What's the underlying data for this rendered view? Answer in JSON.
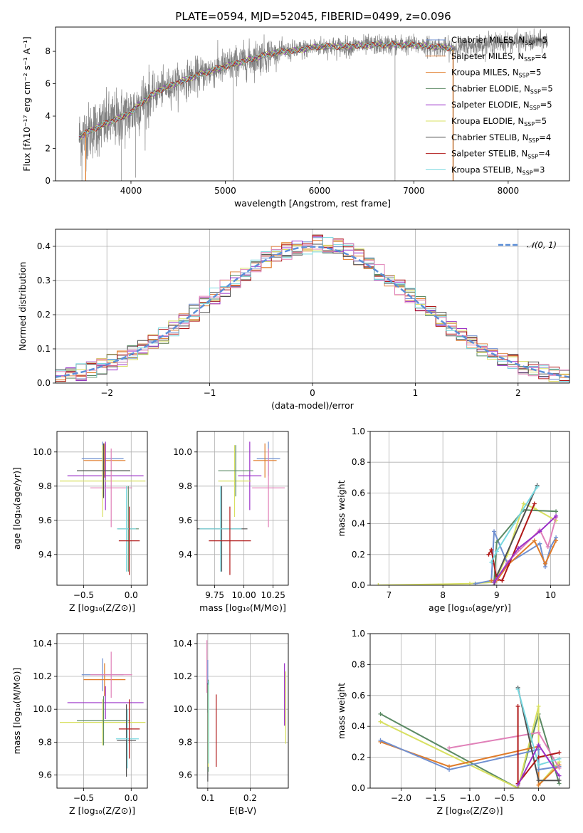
{
  "figure_title": "PLATE=0594, MJD=52045, FIBERID=0499, z=0.096",
  "chart_data": [
    {
      "id": "spectrum",
      "type": "line",
      "xlabel": "wavelength [Angstrom, rest frame]",
      "ylabel": "Flux [fλ10⁻¹⁷ erg cm⁻² s⁻¹ A⁻¹]",
      "xlim": [
        3200,
        8650
      ],
      "ylim": [
        0,
        9.5
      ],
      "xticks": [
        4000,
        5000,
        6000,
        7000,
        8000
      ],
      "yticks": [
        0,
        2,
        4,
        6,
        8
      ],
      "grid": false,
      "legend_position": "upper-right",
      "data_series": {
        "name": "",
        "color": "#808080",
        "x_range": [
          3450,
          8420
        ]
      },
      "model_curve": [
        [
          3450,
          2.7
        ],
        [
          3600,
          3.2
        ],
        [
          3800,
          3.7
        ],
        [
          4000,
          4.2
        ],
        [
          4100,
          4.8
        ],
        [
          4300,
          5.6
        ],
        [
          4600,
          6.3
        ],
        [
          4900,
          6.9
        ],
        [
          5200,
          7.4
        ],
        [
          5500,
          7.9
        ],
        [
          5800,
          8.1
        ],
        [
          6000,
          8.3
        ],
        [
          6300,
          8.3
        ],
        [
          6600,
          8.4
        ],
        [
          7000,
          8.4
        ],
        [
          7400,
          8.2
        ],
        [
          7800,
          8.5
        ],
        [
          8100,
          8.6
        ],
        [
          8420,
          8.6
        ]
      ],
      "series": [
        {
          "name": "Chabrier MILES, N",
          "sub": "SSP",
          "suffix": "=5",
          "color": "#6f8fd0"
        },
        {
          "name": "Salpeter MILES, N",
          "sub": "SSP",
          "suffix": "=4",
          "color": "#e0894a"
        },
        {
          "name": "Kroupa MILES, N",
          "sub": "SSP",
          "suffix": "=5",
          "color": "#e07c2a"
        },
        {
          "name": "Chabrier ELODIE, N",
          "sub": "SSP",
          "suffix": "=5",
          "color": "#5b8a64"
        },
        {
          "name": "Salpeter ELODIE, N",
          "sub": "SSP",
          "suffix": "=5",
          "color": "#9b30c8"
        },
        {
          "name": "Kroupa ELODIE, N",
          "sub": "SSP",
          "suffix": "=5",
          "color": "#d8e060"
        },
        {
          "name": "Chabrier STELIB, N",
          "sub": "SSP",
          "suffix": "=4",
          "color": "#505050"
        },
        {
          "name": "Salpeter STELIB, N",
          "sub": "SSP",
          "suffix": "=4",
          "color": "#b01818"
        },
        {
          "name": "Kroupa STELIB, N",
          "sub": "SSP",
          "suffix": "=3",
          "color": "#78d8e0"
        }
      ]
    },
    {
      "id": "residuals",
      "type": "histogram",
      "xlabel": "(data-model)/error",
      "ylabel": "Normed distribution",
      "xlim": [
        -2.5,
        2.5
      ],
      "ylim": [
        0,
        0.45
      ],
      "xticks": [
        -2,
        -1,
        0,
        1,
        2
      ],
      "yticks": [
        0.0,
        0.1,
        0.2,
        0.3,
        0.4
      ],
      "grid": true,
      "bin_width": 0.1,
      "legend_entry": "𝒩(0, 1)",
      "legend_position": "upper-right",
      "gaussian_color": "#5b8fd8",
      "histogram_colors": [
        "#6f8fd0",
        "#e0894a",
        "#e07c2a",
        "#5b8a64",
        "#9b30c8",
        "#d8e060",
        "#505050",
        "#b01818",
        "#78d8e0",
        "#e080b8"
      ]
    },
    {
      "id": "age_vs_Z",
      "type": "errorbar",
      "xlabel": "Z [log₁₀(Z/Z⊙)]",
      "ylabel": "age  [log₁₀(age/yr)]",
      "xlim": [
        -0.78,
        0.17
      ],
      "ylim": [
        9.22,
        10.12
      ],
      "xticks": [
        -0.5,
        0.0
      ],
      "yticks": [
        9.4,
        9.6,
        9.8,
        10.0
      ],
      "grid": true,
      "points": [
        {
          "x": -0.3,
          "xerr": 0.22,
          "y": 9.96,
          "yerr": 0.1,
          "color": "#6f8fd0"
        },
        {
          "x": -0.28,
          "xerr": 0.22,
          "y": 9.95,
          "yerr": 0.1,
          "color": "#e07c2a"
        },
        {
          "x": -0.27,
          "xerr": 0.4,
          "y": 9.86,
          "yerr": 0.2,
          "color": "#9b30c8"
        },
        {
          "x": -0.3,
          "xerr": 0.45,
          "y": 9.83,
          "yerr": 0.21,
          "color": "#d8e060"
        },
        {
          "x": -0.21,
          "xerr": 0.22,
          "y": 9.79,
          "yerr": 0.23,
          "color": "#e080b8"
        },
        {
          "x": -0.29,
          "xerr": 0.28,
          "y": 9.89,
          "yerr": 0.15,
          "color": "#5b8a64"
        },
        {
          "x": -0.29,
          "xerr": 0.28,
          "y": 9.89,
          "yerr": 0.16,
          "color": "#505050"
        },
        {
          "x": -0.03,
          "xerr": 0.11,
          "y": 9.55,
          "yerr": 0.25,
          "color": "#5b8a64"
        },
        {
          "x": -0.05,
          "xerr": 0.1,
          "y": 9.55,
          "yerr": 0.25,
          "color": "#78d8e0"
        },
        {
          "x": -0.02,
          "xerr": 0.11,
          "y": 9.48,
          "yerr": 0.2,
          "color": "#b01818"
        }
      ]
    },
    {
      "id": "age_vs_mass",
      "type": "errorbar",
      "xlabel": "mass [log₁₀(M/M⊙)]",
      "ylabel": "",
      "xlim": [
        9.6,
        10.38
      ],
      "ylim": [
        9.22,
        10.12
      ],
      "xticks": [
        9.75,
        10.0,
        10.25
      ],
      "yticks": [
        9.4,
        9.6,
        9.8,
        10.0
      ],
      "grid": true,
      "points": [
        {
          "x": 10.21,
          "xerr": 0.1,
          "y": 9.96,
          "yerr": 0.1,
          "color": "#6f8fd0"
        },
        {
          "x": 10.18,
          "xerr": 0.1,
          "y": 9.95,
          "yerr": 0.1,
          "color": "#e07c2a"
        },
        {
          "x": 10.05,
          "xerr": 0.1,
          "y": 9.86,
          "yerr": 0.2,
          "color": "#9b30c8"
        },
        {
          "x": 9.92,
          "xerr": 0.14,
          "y": 9.83,
          "yerr": 0.21,
          "color": "#d8e060"
        },
        {
          "x": 10.21,
          "xerr": 0.14,
          "y": 9.79,
          "yerr": 0.23,
          "color": "#e080b8"
        },
        {
          "x": 9.93,
          "xerr": 0.15,
          "y": 9.89,
          "yerr": 0.15,
          "color": "#5b8a64"
        },
        {
          "x": 9.81,
          "xerr": 0.22,
          "y": 9.55,
          "yerr": 0.25,
          "color": "#505050"
        },
        {
          "x": 9.8,
          "xerr": 0.18,
          "y": 9.55,
          "yerr": 0.25,
          "color": "#78d8e0"
        },
        {
          "x": 9.88,
          "xerr": 0.18,
          "y": 9.48,
          "yerr": 0.2,
          "color": "#b01818"
        }
      ]
    },
    {
      "id": "weight_vs_age",
      "type": "line",
      "xlabel": "age  [log₁₀(age/yr)]",
      "ylabel": "mass weight",
      "xlim": [
        6.65,
        10.35
      ],
      "ylim": [
        0,
        1.0
      ],
      "xticks": [
        7,
        8,
        9,
        10
      ],
      "yticks": [
        0.0,
        0.2,
        0.4,
        0.6,
        0.8,
        1.0
      ],
      "grid": true,
      "series": [
        {
          "color": "#d8e060",
          "points": [
            [
              6.8,
              0.0
            ],
            [
              8.5,
              0.01
            ],
            [
              8.95,
              0.02
            ],
            [
              9.0,
              0.05
            ],
            [
              9.2,
              0.2
            ],
            [
              9.5,
              0.53
            ],
            [
              9.7,
              0.5
            ],
            [
              10.1,
              0.42
            ]
          ]
        },
        {
          "color": "#6f8fd0",
          "points": [
            [
              8.6,
              0.01
            ],
            [
              8.9,
              0.03
            ],
            [
              8.95,
              0.35
            ],
            [
              9.2,
              0.14
            ],
            [
              9.8,
              0.27
            ],
            [
              9.9,
              0.12
            ],
            [
              10.0,
              0.25
            ],
            [
              10.1,
              0.31
            ]
          ]
        },
        {
          "color": "#e07c2a",
          "points": [
            [
              8.9,
              0.03
            ],
            [
              9.0,
              0.03
            ],
            [
              9.2,
              0.13
            ],
            [
              9.7,
              0.29
            ],
            [
              9.9,
              0.14
            ],
            [
              10.1,
              0.29
            ]
          ]
        },
        {
          "color": "#5b8a64",
          "points": [
            [
              8.95,
              0.02
            ],
            [
              9.0,
              0.28
            ],
            [
              9.5,
              0.49
            ],
            [
              10.1,
              0.48
            ]
          ]
        },
        {
          "color": "#505050",
          "points": [
            [
              8.95,
              0.0
            ],
            [
              9.0,
              0.06
            ],
            [
              9.75,
              0.65
            ]
          ]
        },
        {
          "color": "#b01818",
          "points": [
            [
              8.85,
              0.2
            ],
            [
              8.9,
              0.23
            ],
            [
              9.0,
              0.04
            ],
            [
              9.1,
              0.03
            ],
            [
              9.7,
              0.53
            ]
          ]
        },
        {
          "color": "#78d8e0",
          "points": [
            [
              8.9,
              0.15
            ],
            [
              9.0,
              0.22
            ],
            [
              9.75,
              0.64
            ]
          ]
        },
        {
          "color": "#e080b8",
          "points": [
            [
              9.0,
              0.04
            ],
            [
              9.2,
              0.15
            ],
            [
              9.8,
              0.36
            ],
            [
              9.95,
              0.25
            ],
            [
              10.1,
              0.44
            ]
          ]
        },
        {
          "color": "#9b30c8",
          "points": [
            [
              8.95,
              0.02
            ],
            [
              9.4,
              0.24
            ],
            [
              9.8,
              0.35
            ],
            [
              10.1,
              0.45
            ]
          ]
        }
      ]
    },
    {
      "id": "mass_vs_Z",
      "type": "errorbar",
      "xlabel": "Z [log₁₀(Z/Z⊙)]",
      "ylabel": "mass [log₁₀(M/M⊙)]",
      "xlim": [
        -0.78,
        0.17
      ],
      "ylim": [
        9.52,
        10.46
      ],
      "xticks": [
        -0.5,
        0.0
      ],
      "yticks": [
        9.6,
        9.8,
        10.0,
        10.2,
        10.4
      ],
      "grid": true,
      "points": [
        {
          "x": -0.3,
          "xerr": 0.22,
          "y": 10.21,
          "yerr": 0.1,
          "color": "#6f8fd0"
        },
        {
          "x": -0.28,
          "xerr": 0.22,
          "y": 10.18,
          "yerr": 0.1,
          "color": "#e07c2a"
        },
        {
          "x": -0.21,
          "xerr": 0.22,
          "y": 10.21,
          "yerr": 0.14,
          "color": "#e080b8"
        },
        {
          "x": -0.27,
          "xerr": 0.4,
          "y": 10.04,
          "yerr": 0.1,
          "color": "#9b30c8"
        },
        {
          "x": -0.3,
          "xerr": 0.45,
          "y": 9.92,
          "yerr": 0.14,
          "color": "#d8e060"
        },
        {
          "x": -0.29,
          "xerr": 0.28,
          "y": 9.93,
          "yerr": 0.15,
          "color": "#5b8a64"
        },
        {
          "x": -0.05,
          "xerr": 0.1,
          "y": 9.81,
          "yerr": 0.22,
          "color": "#505050"
        },
        {
          "x": -0.04,
          "xerr": 0.12,
          "y": 9.82,
          "yerr": 0.18,
          "color": "#78d8e0"
        },
        {
          "x": -0.02,
          "xerr": 0.11,
          "y": 9.88,
          "yerr": 0.18,
          "color": "#b01818"
        }
      ]
    },
    {
      "id": "mass_vs_ebv",
      "type": "errorbar",
      "xlabel": "E(B-V)",
      "ylabel": "",
      "xlim": [
        0.075,
        0.29
      ],
      "ylim": [
        9.52,
        10.46
      ],
      "xticks": [
        0.1,
        0.2
      ],
      "yticks": [
        9.6,
        9.8,
        10.0,
        10.2,
        10.4
      ],
      "grid": true,
      "points": [
        {
          "x": 0.098,
          "xerr": 0,
          "y": 10.26,
          "yerr": 0.16,
          "color": "#e080b8"
        },
        {
          "x": 0.1,
          "xerr": 0,
          "y": 10.14,
          "yerr": 0.16,
          "color": "#6f8fd0"
        },
        {
          "x": 0.1,
          "xerr": 0,
          "y": 9.86,
          "yerr": 0.3,
          "color": "#505050"
        },
        {
          "x": 0.101,
          "xerr": 0,
          "y": 9.9,
          "yerr": 0.28,
          "color": "#5b8a64"
        },
        {
          "x": 0.101,
          "xerr": 0,
          "y": 9.9,
          "yerr": 0.25,
          "color": "#d8e060"
        },
        {
          "x": 0.102,
          "xerr": 0,
          "y": 9.92,
          "yerr": 0.25,
          "color": "#78d8e0"
        },
        {
          "x": 0.12,
          "xerr": 0,
          "y": 9.87,
          "yerr": 0.22,
          "color": "#b01818"
        },
        {
          "x": 0.281,
          "xerr": 0,
          "y": 10.09,
          "yerr": 0.19,
          "color": "#9b30c8"
        },
        {
          "x": 0.284,
          "xerr": 0,
          "y": 10.01,
          "yerr": 0.22,
          "color": "#d8e060"
        }
      ]
    },
    {
      "id": "weight_vs_Z",
      "type": "line",
      "xlabel": "Z [log₁₀(Z/Z⊙)]",
      "ylabel": "mass weight",
      "xlim": [
        -2.45,
        0.45
      ],
      "ylim": [
        0,
        1.0
      ],
      "xticks": [
        -2.0,
        -1.5,
        -1.0,
        -0.5,
        0.0
      ],
      "yticks": [
        0.0,
        0.2,
        0.4,
        0.6,
        0.8,
        1.0
      ],
      "grid": true,
      "series": [
        {
          "color": "#5b8a64",
          "points": [
            [
              -2.3,
              0.48
            ],
            [
              -0.3,
              0.0
            ],
            [
              0.0,
              0.48
            ],
            [
              0.3,
              0.03
            ]
          ]
        },
        {
          "color": "#d8e060",
          "points": [
            [
              -2.3,
              0.43
            ],
            [
              -0.3,
              0.0
            ],
            [
              0.0,
              0.53
            ],
            [
              0.0,
              0.02
            ],
            [
              0.3,
              0.17
            ]
          ]
        },
        {
          "color": "#e07c2a",
          "points": [
            [
              -2.3,
              0.3
            ],
            [
              -1.3,
              0.14
            ],
            [
              0.0,
              0.27
            ],
            [
              0.0,
              0.02
            ],
            [
              0.3,
              0.15
            ]
          ]
        },
        {
          "color": "#6f8fd0",
          "points": [
            [
              -2.3,
              0.31
            ],
            [
              -1.3,
              0.12
            ],
            [
              -0.3,
              0.22
            ],
            [
              0.0,
              0.25
            ],
            [
              0.0,
              0.12
            ],
            [
              0.3,
              0.14
            ]
          ]
        },
        {
          "color": "#e080b8",
          "points": [
            [
              -1.3,
              0.26
            ],
            [
              0.0,
              0.36
            ],
            [
              0.3,
              0.13
            ]
          ]
        },
        {
          "color": "#505050",
          "points": [
            [
              -0.3,
              0.65
            ],
            [
              0.0,
              0.05
            ],
            [
              0.3,
              0.05
            ]
          ]
        },
        {
          "color": "#b01818",
          "points": [
            [
              -0.3,
              0.53
            ],
            [
              -0.3,
              0.03
            ],
            [
              0.0,
              0.2
            ],
            [
              0.3,
              0.23
            ]
          ]
        },
        {
          "color": "#78d8e0",
          "points": [
            [
              -0.3,
              0.64
            ],
            [
              0.0,
              0.15
            ],
            [
              0.3,
              0.19
            ]
          ]
        },
        {
          "color": "#9b30c8",
          "points": [
            [
              -0.3,
              0.02
            ],
            [
              0.0,
              0.28
            ],
            [
              0.3,
              0.08
            ]
          ]
        }
      ]
    }
  ]
}
